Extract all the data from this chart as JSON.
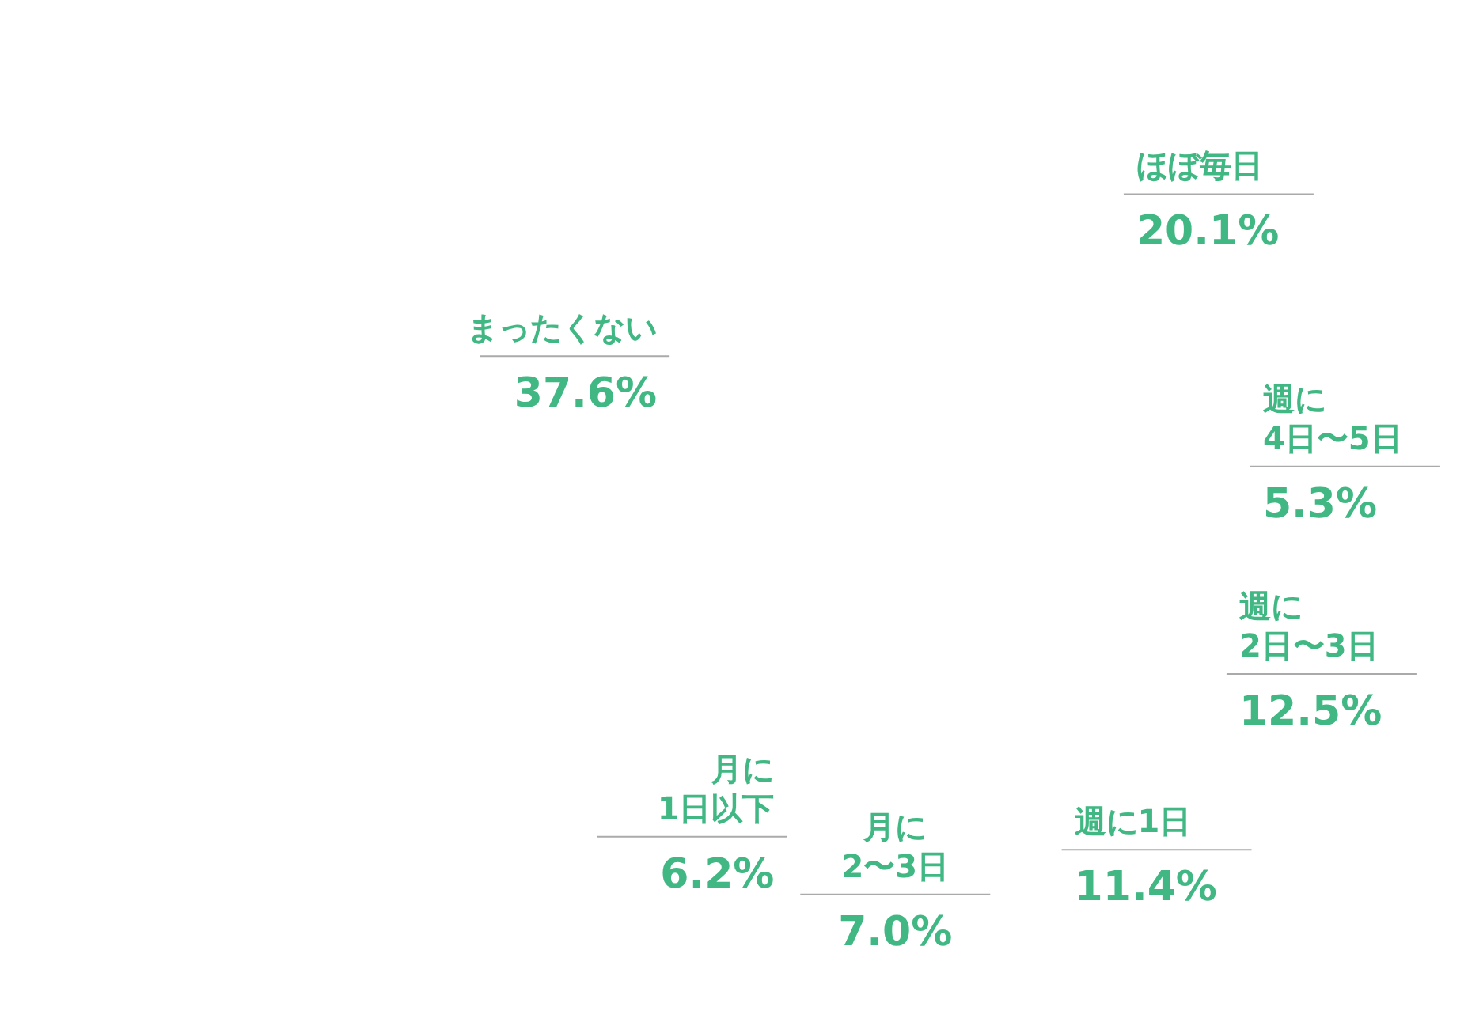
{
  "chart_data": {
    "type": "other",
    "categories": [
      "ほぼ毎日",
      "週に\n4日〜5日",
      "週に\n2日〜3日",
      "週に1日",
      "月に\n2〜3日",
      "月に\n1日以下",
      "まったくない"
    ],
    "values": [
      20.1,
      5.3,
      12.5,
      11.4,
      7.0,
      6.2,
      37.6
    ],
    "value_labels": [
      "20.1%",
      "5.3%",
      "12.5%",
      "11.4%",
      "7.0%",
      "6.2%",
      "37.6%"
    ],
    "color": "#41b883"
  }
}
